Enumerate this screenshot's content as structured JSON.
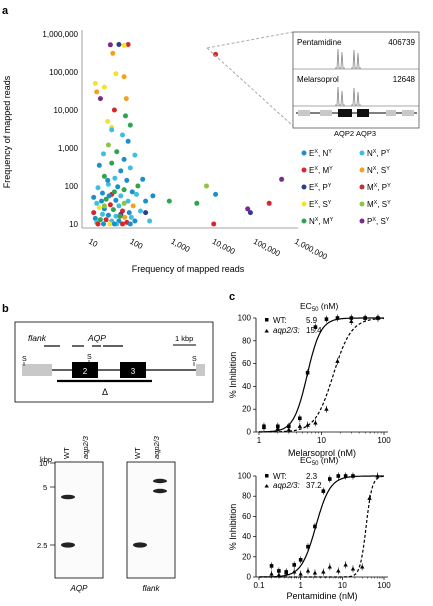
{
  "panels": {
    "a": "a",
    "b": "b",
    "c": "c"
  },
  "panel_a": {
    "y_ticks": [
      "1,000,000",
      "100,000",
      "10,000",
      "1,000",
      "100",
      "10"
    ],
    "x_ticks": [
      "10",
      "100",
      "1,000",
      "10,000",
      "100,000",
      "1,000,000"
    ],
    "ylabel": "Frequency of mapped reads",
    "xlabel": "Frequency of mapped reads",
    "inset": {
      "top": {
        "name": "Pentamidine",
        "value": "406739"
      },
      "bottom": {
        "name": "Melarsoprol",
        "value": "12648"
      },
      "genes": [
        "AQP2",
        "AQP3"
      ]
    },
    "legend": [
      {
        "label": "E",
        "sup1": "X",
        "label2": ", N",
        "sup2": "Y",
        "color": "#1b8fc9"
      },
      {
        "label": "N",
        "sup1": "X",
        "label2": ", P",
        "sup2": "Y",
        "color": "#3fbfe0"
      },
      {
        "label": "E",
        "sup1": "X",
        "label2": ", M",
        "sup2": "Y",
        "color": "#d8262b"
      },
      {
        "label": "N",
        "sup1": "X",
        "label2": ", S",
        "sup2": "Y",
        "color": "#f2a21f"
      },
      {
        "label": "E",
        "sup1": "X",
        "label2": ", P",
        "sup2": "Y",
        "color": "#2c3b91"
      },
      {
        "label": "M",
        "sup1": "X",
        "label2": ", P",
        "sup2": "Y",
        "color": "#b8323a"
      },
      {
        "label": "E",
        "sup1": "X",
        "label2": ", S",
        "sup2": "Y",
        "color": "#f6e22a"
      },
      {
        "label": "M",
        "sup1": "X",
        "label2": ", S",
        "sup2": "Y",
        "color": "#8cc63e"
      },
      {
        "label": "N",
        "sup1": "X",
        "label2": ", M",
        "sup2": "Y",
        "color": "#2ea44f"
      },
      {
        "label": "P",
        "sup1": "X",
        "label2": ", S",
        "sup2": "Y",
        "color": "#7a2a8a"
      }
    ]
  },
  "panel_b": {
    "flank": "flank",
    "aqp": "AQP",
    "scale": "1 kbp",
    "s": "S",
    "exon2": "2",
    "exon3": "3",
    "delta": "Δ",
    "kbp": "kbp",
    "kb_ticks": [
      "10",
      "5",
      "2.5"
    ],
    "lanes": [
      "WT",
      "aqp2/3"
    ],
    "blot_labels": [
      "AQP",
      "flank"
    ]
  },
  "panel_c": {
    "top": {
      "ec50_title": "EC",
      "ec50_sub": "50",
      "ec50_unit": " (nM)",
      "wt_label": "WT:",
      "wt_value": "5.9",
      "mut_label": "aqp2/3:",
      "mut_value": "15.4",
      "xlabel": "Melarsoprol (nM)",
      "ylabel": "% Inhibition",
      "x_ticks": [
        "1",
        "10",
        "100"
      ],
      "y_ticks": [
        "100",
        "80",
        "60",
        "40",
        "20",
        "0"
      ]
    },
    "bottom": {
      "ec50_title": "EC",
      "ec50_sub": "50",
      "ec50_unit": " (nM)",
      "wt_label": "WT:",
      "wt_value": "2.3",
      "mut_label": "aqp2/3:",
      "mut_value": "37.2",
      "xlabel": "Pentamidine (nM)",
      "ylabel": "% Inhibition",
      "x_ticks": [
        "0.1",
        "1",
        "10",
        "100"
      ],
      "y_ticks": [
        "100",
        "80",
        "60",
        "40",
        "20",
        "0"
      ]
    }
  },
  "chart_data": [
    {
      "type": "scatter",
      "xlabel": "Frequency of mapped reads",
      "ylabel": "Frequency of mapped reads",
      "xscale": "log",
      "yscale": "log",
      "xlim": [
        10,
        1000000
      ],
      "ylim": [
        10,
        1000000
      ],
      "points": [
        [
          75,
          530000,
          "#d8262b"
        ],
        [
          28,
          520000,
          "#7a2a8a"
        ],
        [
          45,
          530000,
          "#2c3b91"
        ],
        [
          60,
          500000,
          "#f6e22a"
        ],
        [
          32,
          310000,
          "#f2a21f"
        ],
        [
          38,
          90000,
          "#f6e22a"
        ],
        [
          60,
          75000,
          "#f2a21f"
        ],
        [
          10000,
          290000,
          "#d8262b"
        ],
        [
          12,
          50000,
          "#f6e22a"
        ],
        [
          20,
          40000,
          "#f6e22a"
        ],
        [
          13,
          30000,
          "#f2a21f"
        ],
        [
          16,
          20000,
          "#7a2a8a"
        ],
        [
          68,
          20000,
          "#f2a21f"
        ],
        [
          35,
          10000,
          "#d8262b"
        ],
        [
          24,
          5000,
          "#f6e22a"
        ],
        [
          30,
          3500,
          "#f6e22a"
        ],
        [
          65,
          7000,
          "#2ea44f"
        ],
        [
          85,
          4000,
          "#2ea44f"
        ],
        [
          30,
          3000,
          "#3fbfe0"
        ],
        [
          55,
          2200,
          "#3fbfe0"
        ],
        [
          75,
          1500,
          "#1b8fc9"
        ],
        [
          25,
          1200,
          "#8cc63e"
        ],
        [
          40,
          800,
          "#2ea44f"
        ],
        [
          19,
          700,
          "#3fbfe0"
        ],
        [
          60,
          500,
          "#1b8fc9"
        ],
        [
          110,
          650,
          "#3fbfe0"
        ],
        [
          30,
          400,
          "#2ea44f"
        ],
        [
          15,
          350,
          "#1b8fc9"
        ],
        [
          85,
          300,
          "#3fbfe0"
        ],
        [
          50,
          250,
          "#1b8fc9"
        ],
        [
          20,
          180,
          "#2ea44f"
        ],
        [
          36,
          160,
          "#3fbfe0"
        ],
        [
          70,
          140,
          "#1b8fc9"
        ],
        [
          170,
          150,
          "#1b8fc9"
        ],
        [
          25,
          110,
          "#3fbfe0"
        ],
        [
          42,
          95,
          "#1b8fc9"
        ],
        [
          14,
          90,
          "#3fbfe0"
        ],
        [
          60,
          80,
          "#2ea44f"
        ],
        [
          95,
          70,
          "#1b8fc9"
        ],
        [
          18,
          65,
          "#1b8fc9"
        ],
        [
          30,
          60,
          "#d8262b"
        ],
        [
          50,
          55,
          "#3fbfe0"
        ],
        [
          120,
          60,
          "#3fbfe0"
        ],
        [
          11,
          50,
          "#1b8fc9"
        ],
        [
          22,
          45,
          "#2ea44f"
        ],
        [
          38,
          42,
          "#1b8fc9"
        ],
        [
          75,
          40,
          "#3fbfe0"
        ],
        [
          13,
          35,
          "#3fbfe0"
        ],
        [
          28,
          32,
          "#d8262b"
        ],
        [
          45,
          30,
          "#3fbfe0"
        ],
        [
          100,
          30,
          "#f2a21f"
        ],
        [
          200,
          40,
          "#1b8fc9"
        ],
        [
          15,
          27,
          "#f6e22a"
        ],
        [
          20,
          25,
          "#1b8fc9"
        ],
        [
          33,
          24,
          "#2ea44f"
        ],
        [
          55,
          22,
          "#d8262b"
        ],
        [
          80,
          20,
          "#1b8fc9"
        ],
        [
          150,
          22,
          "#3fbfe0"
        ],
        [
          11,
          20,
          "#d8262b"
        ],
        [
          18,
          18,
          "#3fbfe0"
        ],
        [
          25,
          17,
          "#1b8fc9"
        ],
        [
          38,
          16,
          "#3fbfe0"
        ],
        [
          62,
          15,
          "#f2a21f"
        ],
        [
          90,
          15,
          "#3fbfe0"
        ],
        [
          12,
          14,
          "#1b8fc9"
        ],
        [
          16,
          13,
          "#2ea44f"
        ],
        [
          22,
          13,
          "#d8262b"
        ],
        [
          30,
          12,
          "#3fbfe0"
        ],
        [
          45,
          12,
          "#1b8fc9"
        ],
        [
          70,
          11,
          "#d8262b"
        ],
        [
          110,
          12,
          "#1b8fc9"
        ],
        [
          250,
          12,
          "#3fbfe0"
        ],
        [
          13,
          11,
          "#3fbfe0"
        ],
        [
          19,
          10,
          "#1b8fc9"
        ],
        [
          27,
          10,
          "#f6e22a"
        ],
        [
          40,
          10,
          "#3fbfe0"
        ],
        [
          55,
          10,
          "#d8262b"
        ],
        [
          85,
          10,
          "#1b8fc9"
        ],
        [
          14,
          10,
          "#d8262b"
        ],
        [
          35,
          10,
          "#1b8fc9"
        ],
        [
          20,
          30,
          "#8cc63e"
        ],
        [
          60,
          35,
          "#8cc63e"
        ],
        [
          35,
          70,
          "#2ea44f"
        ],
        [
          24,
          140,
          "#1b8fc9"
        ],
        [
          130,
          100,
          "#2ea44f"
        ],
        [
          300,
          55,
          "#1b8fc9"
        ],
        [
          750,
          40,
          "#2ea44f"
        ],
        [
          3500,
          35,
          "#2ea44f"
        ],
        [
          9000,
          10,
          "#d8262b"
        ],
        [
          10000,
          60,
          "#1b8fc9"
        ],
        [
          6000,
          100,
          "#8cc63e"
        ],
        [
          60000,
          25,
          "#7a2a8a"
        ],
        [
          70000,
          20,
          "#2c3b91"
        ],
        [
          200000,
          35,
          "#d8262b"
        ],
        [
          400000,
          150,
          "#7a2a8a"
        ],
        [
          50,
          18,
          "#7a2a8a"
        ],
        [
          200,
          20,
          "#2c3b91"
        ],
        [
          17,
          40,
          "#1b8fc9"
        ],
        [
          26,
          55,
          "#1b8fc9"
        ],
        [
          48,
          16,
          "#2ea44f"
        ]
      ]
    },
    {
      "type": "line",
      "title": "",
      "xlabel": "Melarsoprol (nM)",
      "ylabel": "% Inhibition",
      "xscale": "log",
      "xlim": [
        1,
        100
      ],
      "ylim": [
        0,
        100
      ],
      "series": [
        {
          "name": "WT",
          "ec50": 5.9,
          "hill": 4,
          "x": [
            1.2,
            2,
            3,
            4.5,
            6,
            8,
            12,
            18,
            30,
            50,
            80
          ],
          "y": [
            5,
            5,
            5,
            12,
            52,
            92,
            99,
            100,
            100,
            100,
            100
          ]
        },
        {
          "name": "aqp2/3",
          "ec50": 15.4,
          "hill": 3,
          "x": [
            1.2,
            2,
            3,
            4.5,
            6,
            8,
            12,
            18,
            30,
            50,
            80
          ],
          "y": [
            4,
            3,
            2,
            5,
            6,
            8,
            20,
            62,
            97,
            100,
            100
          ]
        }
      ]
    },
    {
      "type": "line",
      "title": "",
      "xlabel": "Pentamidine (nM)",
      "ylabel": "% Inhibition",
      "xscale": "log",
      "xlim": [
        0.1,
        100
      ],
      "ylim": [
        0,
        100
      ],
      "series": [
        {
          "name": "WT",
          "ec50": 2.3,
          "hill": 2.5,
          "x": [
            0.2,
            0.3,
            0.45,
            0.7,
            1,
            1.5,
            2.2,
            3.5,
            5,
            8,
            12,
            18
          ],
          "y": [
            11,
            6,
            5,
            12,
            17,
            30,
            50,
            85,
            97,
            100,
            100,
            100
          ]
        },
        {
          "name": "aqp2/3",
          "ec50": 37.2,
          "hill": 6,
          "x": [
            0.2,
            0.3,
            0.45,
            0.7,
            1,
            1.5,
            2.2,
            3.5,
            5,
            8,
            12,
            18,
            30,
            45,
            70
          ],
          "y": [
            3,
            2,
            4,
            5,
            3,
            6,
            4,
            5,
            10,
            6,
            12,
            8,
            10,
            78,
            100
          ]
        }
      ]
    }
  ]
}
